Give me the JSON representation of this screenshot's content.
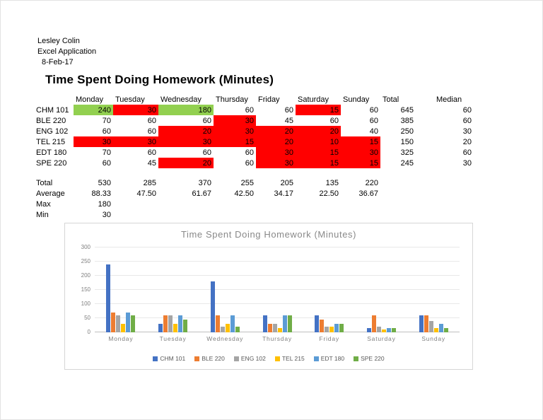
{
  "meta": {
    "author": "Lesley Colin",
    "app_label": "Excel Application",
    "date": "8-Feb-17"
  },
  "title": "Time Spent Doing Homework (Minutes)",
  "fill_colors": {
    "red": "#FF0000",
    "green": "#92D050"
  },
  "table": {
    "day_columns": [
      "Monday",
      "Tuesday",
      "Wednesday",
      "Thursday",
      "Friday",
      "Saturday",
      "Sunday"
    ],
    "total_header": "Total",
    "median_header": "Median",
    "rows": [
      {
        "label": "CHM 101",
        "values": [
          240,
          30,
          180,
          60,
          60,
          15,
          60
        ],
        "fills": [
          "green",
          "red",
          "green",
          "none",
          "none",
          "red",
          "none"
        ],
        "total": 645,
        "median": 60
      },
      {
        "label": "BLE 220",
        "values": [
          70,
          60,
          60,
          30,
          45,
          60,
          60
        ],
        "fills": [
          "none",
          "none",
          "none",
          "red",
          "none",
          "none",
          "none"
        ],
        "total": 385,
        "median": 60
      },
      {
        "label": "ENG 102",
        "values": [
          60,
          60,
          20,
          30,
          20,
          20,
          40
        ],
        "fills": [
          "none",
          "none",
          "red",
          "red",
          "red",
          "red",
          "none"
        ],
        "total": 250,
        "median": 30
      },
      {
        "label": "TEL 215",
        "values": [
          30,
          30,
          30,
          15,
          20,
          10,
          15
        ],
        "fills": [
          "red",
          "red",
          "red",
          "red",
          "red",
          "red",
          "red"
        ],
        "total": 150,
        "median": 20
      },
      {
        "label": "EDT 180",
        "values": [
          70,
          60,
          60,
          60,
          30,
          15,
          30
        ],
        "fills": [
          "none",
          "none",
          "none",
          "none",
          "red",
          "red",
          "red"
        ],
        "total": 325,
        "median": 60
      },
      {
        "label": "SPE 220",
        "values": [
          60,
          45,
          20,
          60,
          30,
          15,
          15
        ],
        "fills": [
          "none",
          "none",
          "red",
          "none",
          "red",
          "red",
          "red"
        ],
        "total": 245,
        "median": 30
      }
    ],
    "summary_rows": [
      {
        "label": "Total",
        "values": [
          "530",
          "285",
          "370",
          "255",
          "205",
          "135",
          "220"
        ]
      },
      {
        "label": "Average",
        "values": [
          "88.33",
          "47.50",
          "61.67",
          "42.50",
          "34.17",
          "22.50",
          "36.67"
        ]
      },
      {
        "label": "Max",
        "values": [
          "180"
        ]
      },
      {
        "label": "Min",
        "values": [
          "30"
        ]
      }
    ]
  },
  "chart_data": {
    "type": "bar",
    "title": "Time Spent Doing Homework (Minutes)",
    "categories": [
      "Monday",
      "Tuesday",
      "Wednesday",
      "Thursday",
      "Friday",
      "Saturday",
      "Sunday"
    ],
    "series": [
      {
        "name": "CHM 101",
        "color": "#4472C4",
        "values": [
          240,
          30,
          180,
          60,
          60,
          15,
          60
        ]
      },
      {
        "name": "BLE 220",
        "color": "#ED7D31",
        "values": [
          70,
          60,
          60,
          30,
          45,
          60,
          60
        ]
      },
      {
        "name": "ENG 102",
        "color": "#A5A5A5",
        "values": [
          60,
          60,
          20,
          30,
          20,
          20,
          40
        ]
      },
      {
        "name": "TEL 215",
        "color": "#FFC000",
        "values": [
          30,
          30,
          30,
          15,
          20,
          10,
          15
        ]
      },
      {
        "name": "EDT 180",
        "color": "#5B9BD5",
        "values": [
          70,
          60,
          60,
          60,
          30,
          15,
          30
        ]
      },
      {
        "name": "SPE 220",
        "color": "#70AD47",
        "values": [
          60,
          45,
          20,
          60,
          30,
          15,
          15
        ]
      }
    ],
    "ylim": [
      0,
      300
    ],
    "ytick_step": 50,
    "grid": true,
    "legend_position": "bottom"
  }
}
